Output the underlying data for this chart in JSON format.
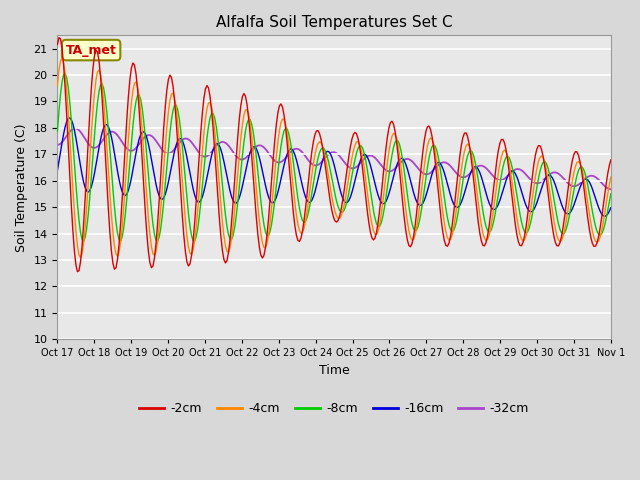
{
  "title": "Alfalfa Soil Temperatures Set C",
  "xlabel": "Time",
  "ylabel": "Soil Temperature (C)",
  "ylim": [
    10.0,
    21.5
  ],
  "yticks": [
    10.0,
    11.0,
    12.0,
    13.0,
    14.0,
    15.0,
    16.0,
    17.0,
    18.0,
    19.0,
    20.0,
    21.0
  ],
  "xtick_labels": [
    "Oct 17",
    "Oct 18",
    "Oct 19",
    "Oct 20",
    "Oct 21",
    "Oct 22",
    "Oct 23",
    "Oct 24",
    "Oct 25",
    "Oct 26",
    "Oct 27",
    "Oct 28",
    "Oct 29",
    "Oct 30",
    "Oct 31",
    "Nov 1"
  ],
  "bg_color": "#d8d8d8",
  "plot_bg_color": "#e8e8e8",
  "line_colors": {
    "-2cm": "#dd0000",
    "-4cm": "#ff8800",
    "-8cm": "#00cc00",
    "-16cm": "#0000dd",
    "-32cm": "#aa44cc"
  },
  "annotation_text": "TA_met",
  "annotation_color": "#cc0000",
  "annotation_bg": "#ffffcc"
}
